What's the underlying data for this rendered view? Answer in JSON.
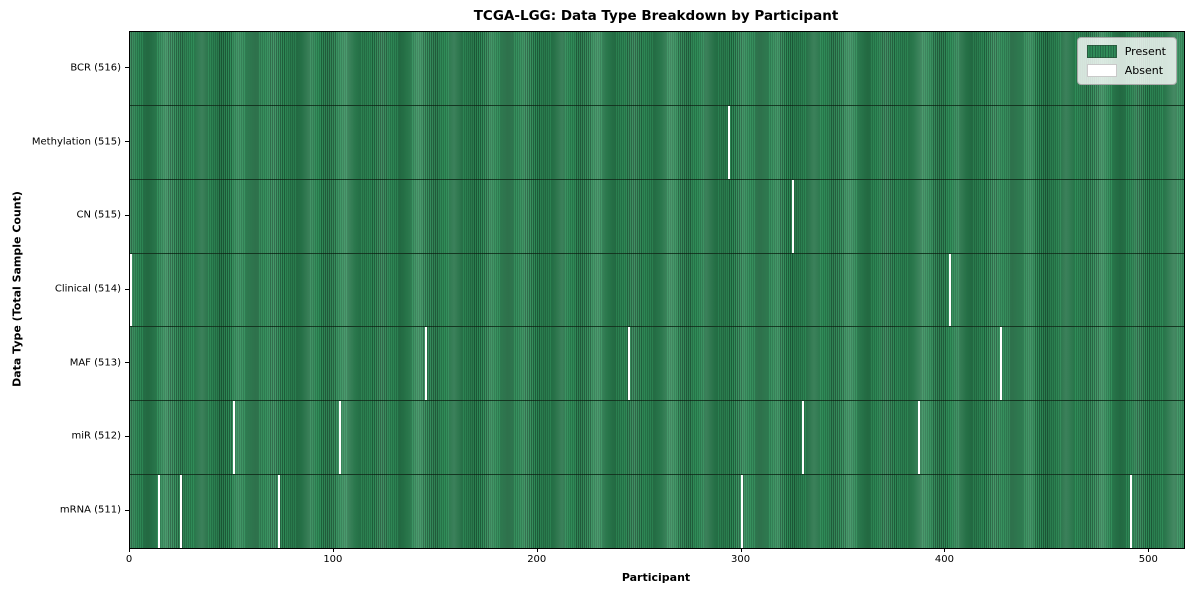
{
  "chart_data": {
    "type": "heatmap",
    "title": "TCGA-LGG: Data Type Breakdown by Participant",
    "xlabel": "Participant",
    "ylabel": "Data Type (Total Sample Count)",
    "total_participants": 516,
    "x_axis_max": 517,
    "x_ticks": [
      0,
      100,
      200,
      300,
      400,
      500
    ],
    "grid": false,
    "legend_position": "upper right",
    "legend": [
      {
        "label": "Present",
        "color": "#2e8b57"
      },
      {
        "label": "Absent",
        "color": "#ffffff"
      }
    ],
    "rows": [
      {
        "label": "BCR (516)",
        "data_type": "BCR",
        "sample_count": 516,
        "absent_participants": []
      },
      {
        "label": "Methylation (515)",
        "data_type": "Methylation",
        "sample_count": 515,
        "absent_participants": [
          294
        ]
      },
      {
        "label": "CN (515)",
        "data_type": "CN",
        "sample_count": 515,
        "absent_participants": [
          325
        ]
      },
      {
        "label": "Clinical (514)",
        "data_type": "Clinical",
        "sample_count": 514,
        "absent_participants": [
          0,
          402
        ]
      },
      {
        "label": "MAF (513)",
        "data_type": "MAF",
        "sample_count": 513,
        "absent_participants": [
          145,
          245,
          427
        ]
      },
      {
        "label": "miR (512)",
        "data_type": "miR",
        "sample_count": 512,
        "absent_participants": [
          51,
          103,
          330,
          387
        ]
      },
      {
        "label": "mRNA (511)",
        "data_type": "mRNA",
        "sample_count": 511,
        "absent_participants": [
          14,
          25,
          73,
          300,
          491
        ]
      }
    ],
    "colors": {
      "present": "#2e8b57",
      "present_edge": "#1e5f3b",
      "absent": "#ffffff",
      "row_divider": "#0a140c",
      "spine": "#000000"
    }
  }
}
